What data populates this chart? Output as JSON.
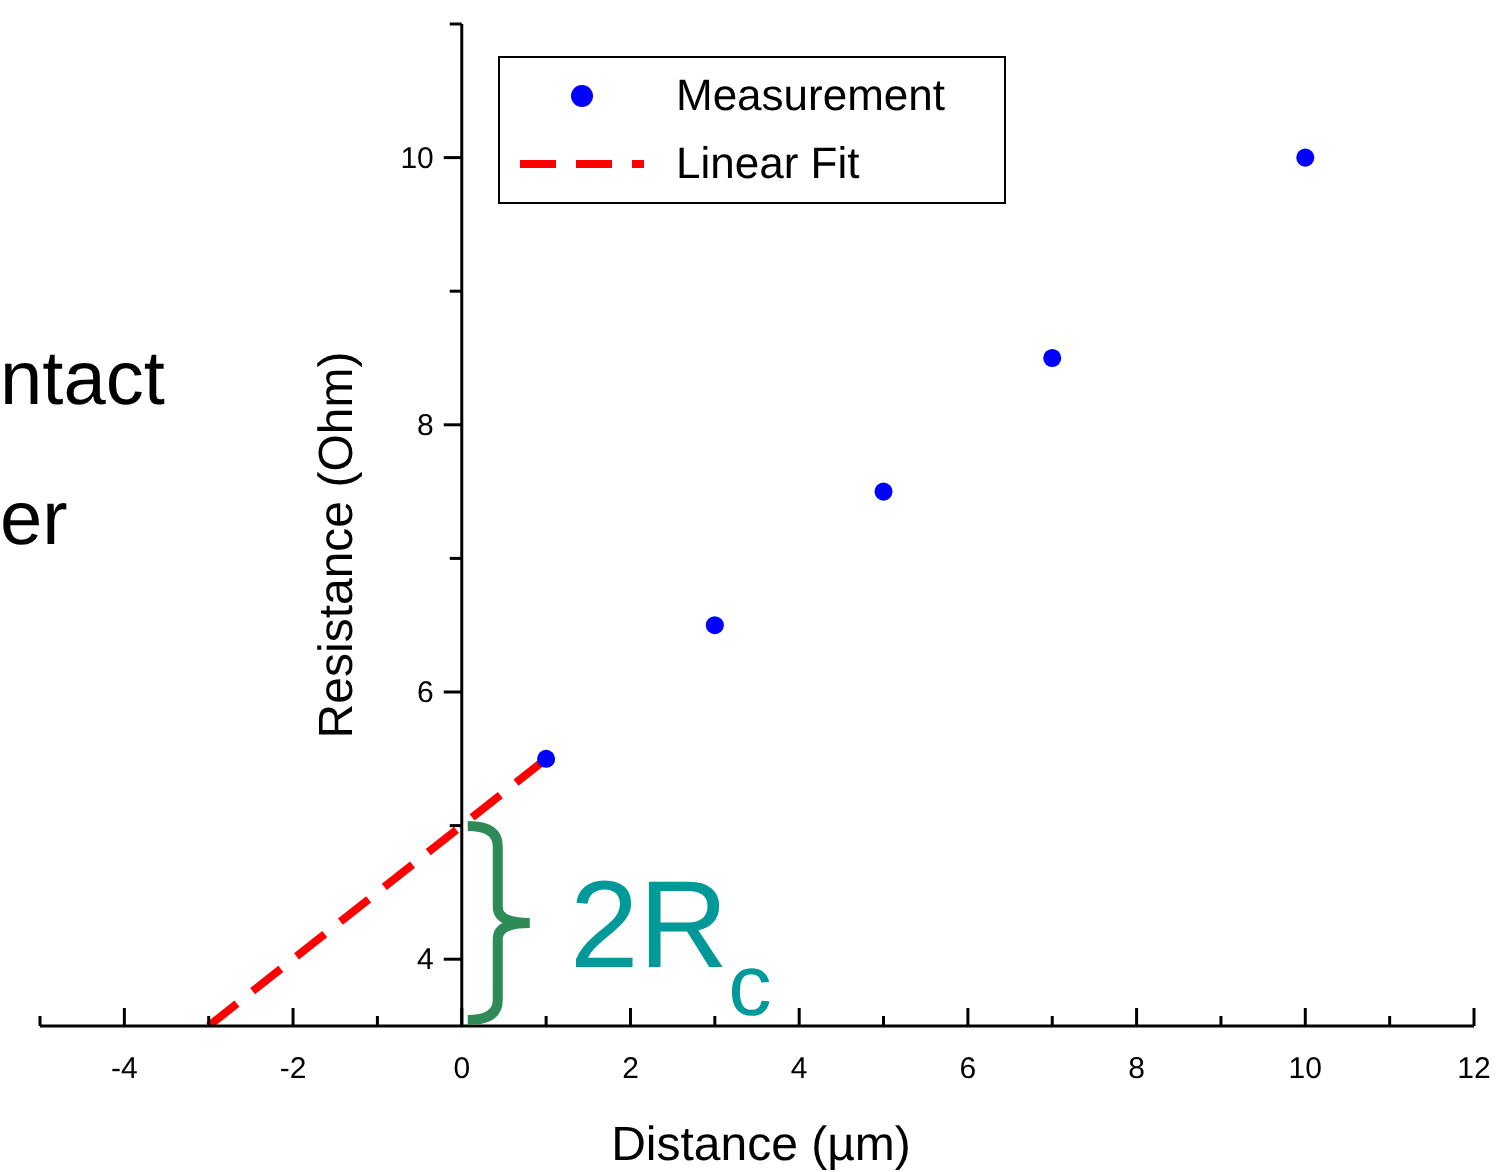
{
  "chart_data": {
    "type": "scatter",
    "xlabel": "Distance (µm)",
    "ylabel": "Resistance (Ohm)",
    "xlim": [
      -5,
      12
    ],
    "xticks": [
      {
        "value": -5,
        "label": null
      },
      -4,
      {
        "value": -3,
        "label": null
      },
      -2,
      {
        "value": -1,
        "label": null
      },
      0,
      {
        "value": 1,
        "label": null
      },
      2,
      {
        "value": 3,
        "label": null
      },
      4,
      {
        "value": 5,
        "label": null
      },
      6,
      {
        "value": 7,
        "label": null
      },
      8,
      {
        "value": 9,
        "label": null
      },
      10,
      {
        "value": 11,
        "label": null
      },
      12
    ],
    "ylim": [
      3.5,
      11
    ],
    "yticks": [
      4,
      {
        "value": 5,
        "label": null
      },
      6,
      {
        "value": 7,
        "label": null
      },
      8,
      {
        "value": 9,
        "label": null
      },
      10,
      {
        "value": 11,
        "label": null
      }
    ],
    "series": [
      {
        "name": "Measurement",
        "color": "#0000ff",
        "x": [
          1,
          3,
          5,
          7,
          10
        ],
        "values": [
          5.5,
          6.5,
          7.5,
          8.5,
          10
        ],
        "marker": "circle"
      },
      {
        "name": "Linear Fit",
        "type": "line",
        "color": "#ff0000",
        "x": [
          -3,
          1
        ],
        "values": [
          3.5,
          5.5
        ],
        "line_style": "dashed",
        "marker": "none"
      }
    ],
    "legend": "top",
    "grid": false,
    "annotations": [
      "ntact",
      "er",
      "2R$_{c}$"
    ]
  }
}
